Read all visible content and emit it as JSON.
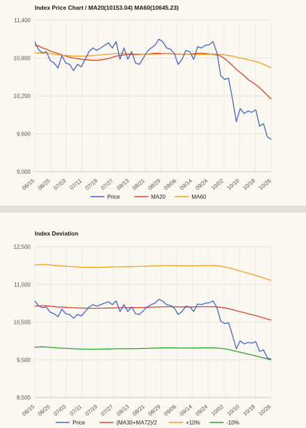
{
  "charts": {
    "price": {
      "title": "Index Price Chart / MA20(10153.04) MA60(10645.23)"
    },
    "deviation": {
      "title": "Index Deviation"
    }
  },
  "chart_data": [
    {
      "type": "line",
      "title": "Index Price Chart / MA20(10153.04) MA60(10645.23)",
      "xlabel": "",
      "ylabel": "",
      "ylim": [
        9000,
        11400
      ],
      "yticks": [
        "9,000",
        "9,600",
        "10,200",
        "10,800",
        "11,400"
      ],
      "yticks_values": [
        9000,
        9600,
        10200,
        10800,
        11400
      ],
      "xtick_labels": [
        "06/15",
        "06/25",
        "07/03",
        "07/11",
        "07/19",
        "07/27",
        "08/13",
        "08/21",
        "08/29",
        "09/06",
        "09/14",
        "09/24",
        "10/02",
        "10/10",
        "10/18",
        "10/26"
      ],
      "grid": true,
      "legend": "bottom",
      "series": [
        {
          "name": "Price",
          "color": "#4065c2",
          "values": [
            11060,
            10930,
            10880,
            10900,
            10760,
            10720,
            10640,
            10840,
            10720,
            10700,
            10600,
            10700,
            10660,
            10780,
            10900,
            10960,
            10920,
            10960,
            11000,
            11040,
            10960,
            11060,
            10780,
            10960,
            10780,
            10900,
            10720,
            10700,
            10800,
            10900,
            10960,
            11000,
            11100,
            11060,
            10960,
            10940,
            10870,
            10700,
            10780,
            10920,
            10900,
            10780,
            10980,
            10960,
            11000,
            11010,
            11060,
            10880,
            10520,
            10460,
            10480,
            10150,
            9790,
            10000,
            9920,
            9960,
            9940,
            9980,
            9720,
            9760,
            9550,
            9510
          ]
        },
        {
          "name": "MA20",
          "color": "#d9432a",
          "values": [
            11000,
            10990,
            10960,
            10940,
            10910,
            10890,
            10870,
            10850,
            10830,
            10810,
            10800,
            10790,
            10780,
            10775,
            10770,
            10765,
            10765,
            10770,
            10780,
            10790,
            10810,
            10830,
            10840,
            10850,
            10855,
            10855,
            10855,
            10855,
            10860,
            10860,
            10870,
            10875,
            10875,
            10870,
            10870,
            10870,
            10865,
            10860,
            10860,
            10860,
            10860,
            10870,
            10875,
            10875,
            10870,
            10865,
            10855,
            10850,
            10830,
            10790,
            10740,
            10680,
            10620,
            10570,
            10520,
            10460,
            10420,
            10380,
            10330,
            10270,
            10210,
            10150
          ]
        },
        {
          "name": "MA60",
          "color": "#f0a11a",
          "values": [
            10880,
            10880,
            10880,
            10875,
            10870,
            10860,
            10850,
            10845,
            10840,
            10835,
            10830,
            10830,
            10830,
            10830,
            10835,
            10840,
            10845,
            10850,
            10855,
            10860,
            10865,
            10870,
            10870,
            10870,
            10870,
            10865,
            10865,
            10860,
            10860,
            10860,
            10860,
            10860,
            10862,
            10865,
            10865,
            10865,
            10865,
            10865,
            10862,
            10860,
            10858,
            10856,
            10856,
            10856,
            10856,
            10860,
            10862,
            10862,
            10858,
            10850,
            10840,
            10830,
            10815,
            10800,
            10790,
            10775,
            10760,
            10745,
            10725,
            10700,
            10675,
            10645
          ]
        }
      ]
    },
    {
      "type": "line",
      "title": "Index Deviation",
      "xlabel": "",
      "ylabel": "",
      "ylim": [
        8500,
        12500
      ],
      "yticks": [
        "8,500",
        "9,500",
        "10,500",
        "11,500",
        "12,500"
      ],
      "yticks_values": [
        8500,
        9500,
        10500,
        11500,
        12500
      ],
      "xtick_labels": [
        "06/15",
        "06/25",
        "07/03",
        "07/11",
        "07/19",
        "07/27",
        "08/13",
        "08/21",
        "08/29",
        "09/06",
        "09/14",
        "09/24",
        "10/02",
        "10/10",
        "10/18",
        "10/26"
      ],
      "grid": true,
      "legend": "bottom",
      "series": [
        {
          "name": "Price",
          "color": "#4065c2",
          "values": [
            11060,
            10930,
            10880,
            10900,
            10760,
            10720,
            10640,
            10840,
            10720,
            10700,
            10600,
            10700,
            10660,
            10780,
            10900,
            10960,
            10920,
            10960,
            11000,
            11040,
            10960,
            11060,
            10780,
            10960,
            10780,
            10900,
            10720,
            10700,
            10800,
            10900,
            10960,
            11000,
            11100,
            11060,
            10960,
            10940,
            10870,
            10700,
            10780,
            10920,
            10900,
            10780,
            10980,
            10960,
            11000,
            11010,
            11060,
            10880,
            10520,
            10460,
            10480,
            10150,
            9790,
            10000,
            9920,
            9960,
            9940,
            9980,
            9720,
            9760,
            9550,
            9510
          ]
        },
        {
          "name": "(MA30+MA72)/2",
          "color": "#d9432a",
          "values": [
            10920,
            10930,
            10935,
            10930,
            10920,
            10910,
            10900,
            10895,
            10890,
            10885,
            10880,
            10875,
            10870,
            10868,
            10866,
            10866,
            10866,
            10868,
            10870,
            10872,
            10875,
            10878,
            10880,
            10880,
            10882,
            10882,
            10884,
            10886,
            10888,
            10890,
            10895,
            10898,
            10900,
            10905,
            10905,
            10905,
            10905,
            10903,
            10900,
            10900,
            10900,
            10902,
            10903,
            10905,
            10905,
            10905,
            10905,
            10900,
            10890,
            10875,
            10855,
            10830,
            10800,
            10775,
            10750,
            10720,
            10695,
            10670,
            10640,
            10610,
            10580,
            10550
          ]
        },
        {
          "name": "+10%",
          "color": "#f0a11a",
          "values": [
            12010,
            12020,
            12030,
            12025,
            12015,
            12000,
            11990,
            11985,
            11980,
            11975,
            11970,
            11965,
            11955,
            11955,
            11952,
            11950,
            11952,
            11955,
            11957,
            11960,
            11962,
            11965,
            11968,
            11970,
            11970,
            11970,
            11972,
            11975,
            11977,
            11980,
            11985,
            11988,
            11990,
            11995,
            11995,
            11995,
            11995,
            11993,
            11990,
            11990,
            11990,
            11992,
            11993,
            11995,
            11995,
            11995,
            11995,
            11990,
            11980,
            11963,
            11940,
            11913,
            11880,
            11852,
            11825,
            11792,
            11765,
            11737,
            11704,
            11671,
            11638,
            11605
          ]
        },
        {
          "name": "-10%",
          "color": "#2aa02a",
          "values": [
            9830,
            9837,
            9842,
            9837,
            9828,
            9819,
            9810,
            9806,
            9801,
            9797,
            9792,
            9788,
            9783,
            9781,
            9779,
            9779,
            9779,
            9781,
            9783,
            9785,
            9788,
            9790,
            9792,
            9792,
            9794,
            9794,
            9796,
            9797,
            9799,
            9801,
            9806,
            9808,
            9810,
            9815,
            9815,
            9815,
            9815,
            9813,
            9810,
            9810,
            9810,
            9812,
            9813,
            9815,
            9815,
            9815,
            9815,
            9810,
            9801,
            9788,
            9770,
            9747,
            9720,
            9698,
            9675,
            9648,
            9626,
            9603,
            9576,
            9549,
            9522,
            9495
          ]
        }
      ]
    }
  ]
}
